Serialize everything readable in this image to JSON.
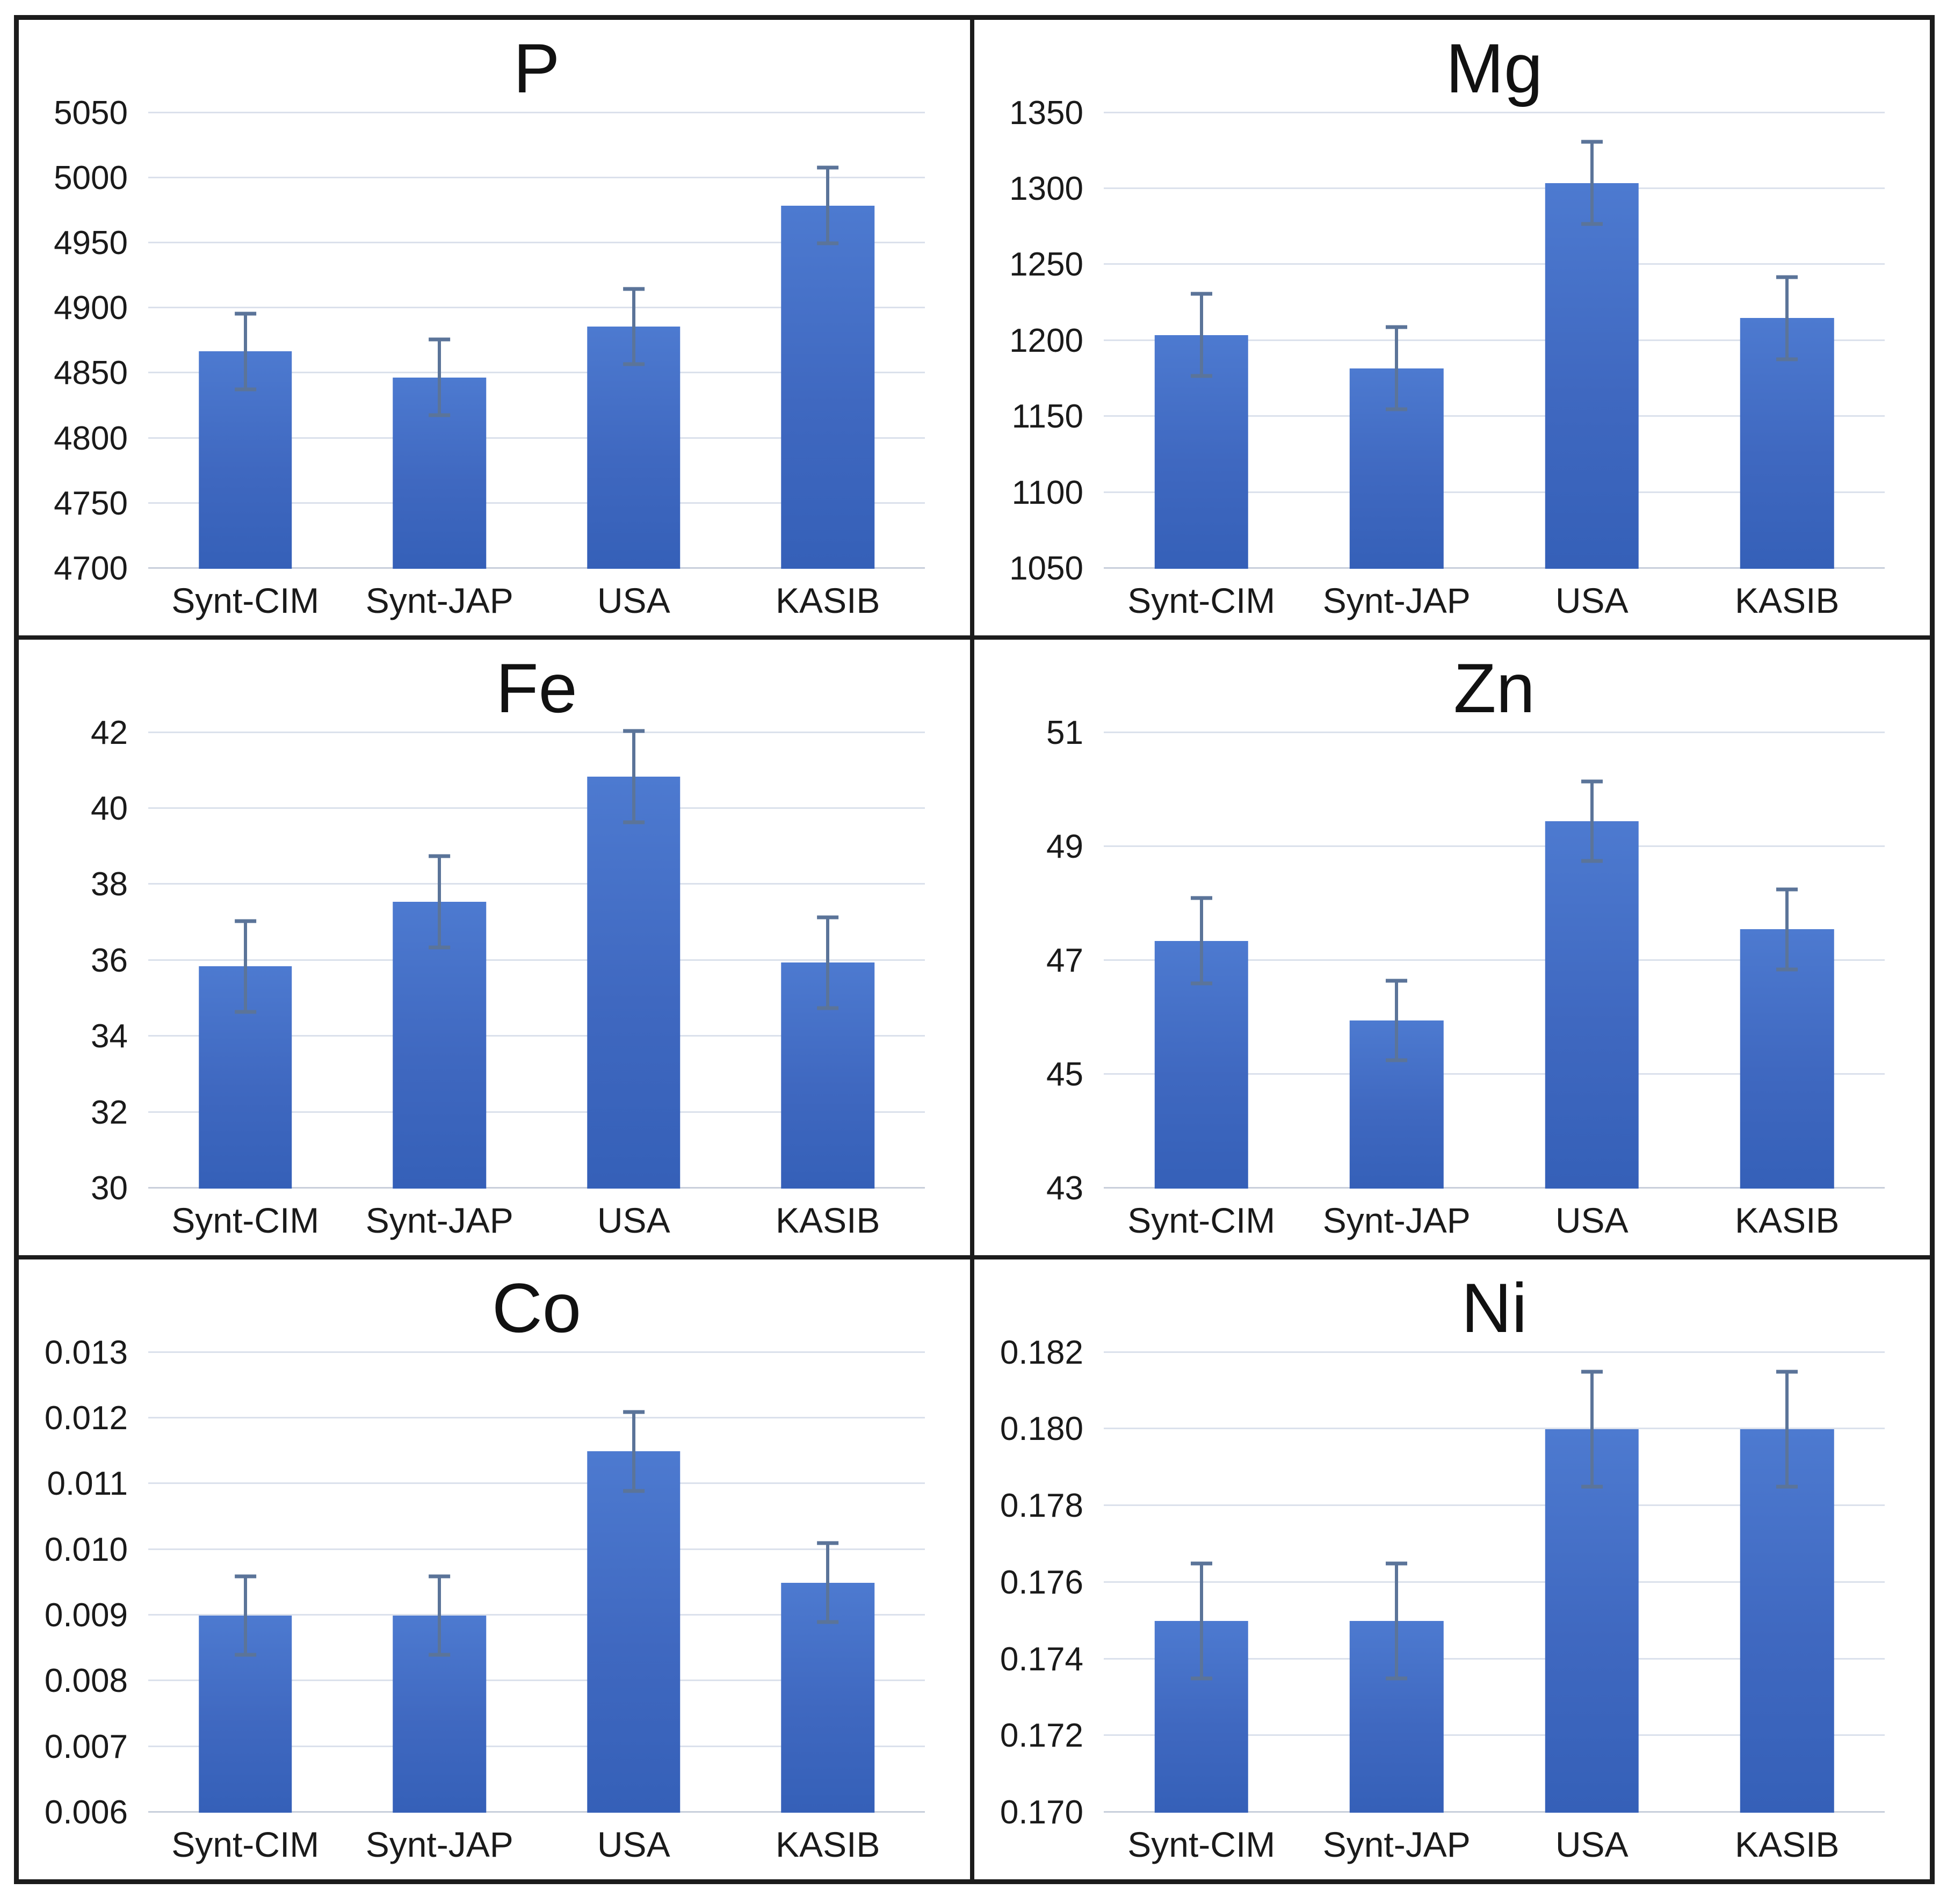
{
  "figure": {
    "layout": "2x3 grid of bar charts",
    "panel_order": [
      "P",
      "Mg",
      "Fe",
      "Zn",
      "Co",
      "Ni"
    ],
    "categories": [
      "Synt-CIM",
      "Synt-JAP",
      "USA",
      "KASIB"
    ]
  },
  "colors": {
    "bar_gradient_top": "#4d7ad0",
    "bar_gradient_bottom": "#3560b8",
    "error_bar": "#5b7499",
    "gridline": "#dbe1ec",
    "baseline": "#c8cfdb",
    "panel_border": "#1c1c1c",
    "text": "#1a1a1a",
    "background": "#ffffff"
  },
  "chart_data": [
    {
      "type": "bar",
      "title": "P",
      "categories": [
        "Synt-CIM",
        "Synt-JAP",
        "USA",
        "KASIB"
      ],
      "values": [
        4867,
        4847,
        4886,
        4979
      ],
      "errors": [
        29,
        29,
        29,
        29
      ],
      "ylim": [
        4700,
        5050
      ],
      "yticks": [
        4700,
        4750,
        4800,
        4850,
        4900,
        4950,
        5000,
        5050
      ],
      "ytick_labels": [
        "4700",
        "4750",
        "4800",
        "4850",
        "4900",
        "4950",
        "5000",
        "5050"
      ],
      "grid": true,
      "legend": "none"
    },
    {
      "type": "bar",
      "title": "Mg",
      "categories": [
        "Synt-CIM",
        "Synt-JAP",
        "USA",
        "KASIB"
      ],
      "values": [
        1204,
        1182,
        1304,
        1215
      ],
      "errors": [
        27,
        27,
        27,
        27
      ],
      "ylim": [
        1050,
        1350
      ],
      "yticks": [
        1050,
        1100,
        1150,
        1200,
        1250,
        1300,
        1350
      ],
      "ytick_labels": [
        "1050",
        "1100",
        "1150",
        "1200",
        "1250",
        "1300",
        "1350"
      ],
      "grid": true,
      "legend": "none"
    },
    {
      "type": "bar",
      "title": "Fe",
      "categories": [
        "Synt-CIM",
        "Synt-JAP",
        "USA",
        "KASIB"
      ],
      "values": [
        35.85,
        37.55,
        40.85,
        35.95
      ],
      "errors": [
        1.2,
        1.2,
        1.2,
        1.2
      ],
      "ylim": [
        30,
        42
      ],
      "yticks": [
        30,
        32,
        34,
        36,
        38,
        40,
        42
      ],
      "ytick_labels": [
        "30",
        "32",
        "34",
        "36",
        "38",
        "40",
        "42"
      ],
      "grid": true,
      "legend": "none"
    },
    {
      "type": "bar",
      "title": "Zn",
      "categories": [
        "Synt-CIM",
        "Synt-JAP",
        "USA",
        "KASIB"
      ],
      "values": [
        47.35,
        45.95,
        49.45,
        47.55
      ],
      "errors": [
        0.75,
        0.7,
        0.7,
        0.7
      ],
      "ylim": [
        43,
        51
      ],
      "yticks": [
        43,
        45,
        47,
        49,
        51
      ],
      "ytick_labels": [
        "43",
        "45",
        "47",
        "49",
        "51"
      ],
      "grid": true,
      "legend": "none"
    },
    {
      "type": "bar",
      "title": "Co",
      "categories": [
        "Synt-CIM",
        "Synt-JAP",
        "USA",
        "KASIB"
      ],
      "values": [
        0.009,
        0.009,
        0.0115,
        0.0095
      ],
      "errors": [
        0.0006,
        0.0006,
        0.0006,
        0.0006
      ],
      "ylim": [
        0.006,
        0.013
      ],
      "yticks": [
        0.006,
        0.007,
        0.008,
        0.009,
        0.01,
        0.011,
        0.012,
        0.013
      ],
      "ytick_labels": [
        "0.006",
        "0.007",
        "0.008",
        "0.009",
        "0.010",
        "0.011",
        "0.012",
        "0.013"
      ],
      "grid": true,
      "legend": "none"
    },
    {
      "type": "bar",
      "title": "Ni",
      "categories": [
        "Synt-CIM",
        "Synt-JAP",
        "USA",
        "KASIB"
      ],
      "values": [
        0.175,
        0.175,
        0.18,
        0.18
      ],
      "errors": [
        0.0015,
        0.0015,
        0.0015,
        0.0015
      ],
      "ylim": [
        0.17,
        0.182
      ],
      "yticks": [
        0.17,
        0.172,
        0.174,
        0.176,
        0.178,
        0.18,
        0.182
      ],
      "ytick_labels": [
        "0.170",
        "0.172",
        "0.174",
        "0.176",
        "0.178",
        "0.180",
        "0.182"
      ],
      "grid": true,
      "legend": "none"
    }
  ]
}
